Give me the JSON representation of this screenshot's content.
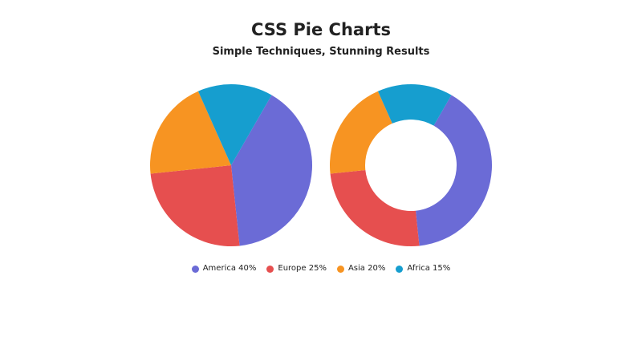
{
  "chart_data": [
    {
      "type": "pie",
      "title": "CSS Pie Charts",
      "subtitle": "Simple Techniques, Stunning Results",
      "categories": [
        "America",
        "Europe",
        "Asia",
        "Africa"
      ],
      "values": [
        40,
        25,
        20,
        15
      ],
      "colors": [
        "#6b6bd6",
        "#e64f4f",
        "#f79422",
        "#169ecf"
      ],
      "legend": "bottom"
    },
    {
      "type": "pie",
      "variant": "donut",
      "categories": [
        "America",
        "Europe",
        "Asia",
        "Africa"
      ],
      "values": [
        40,
        25,
        20,
        15
      ],
      "colors": [
        "#6b6bd6",
        "#e64f4f",
        "#f79422",
        "#169ecf"
      ]
    }
  ],
  "legend": [
    {
      "label": "America 40%",
      "color": "#6b6bd6"
    },
    {
      "label": "Europe 25%",
      "color": "#e64f4f"
    },
    {
      "label": "Asia 20%",
      "color": "#f79422"
    },
    {
      "label": "Africa 15%",
      "color": "#169ecf"
    }
  ]
}
